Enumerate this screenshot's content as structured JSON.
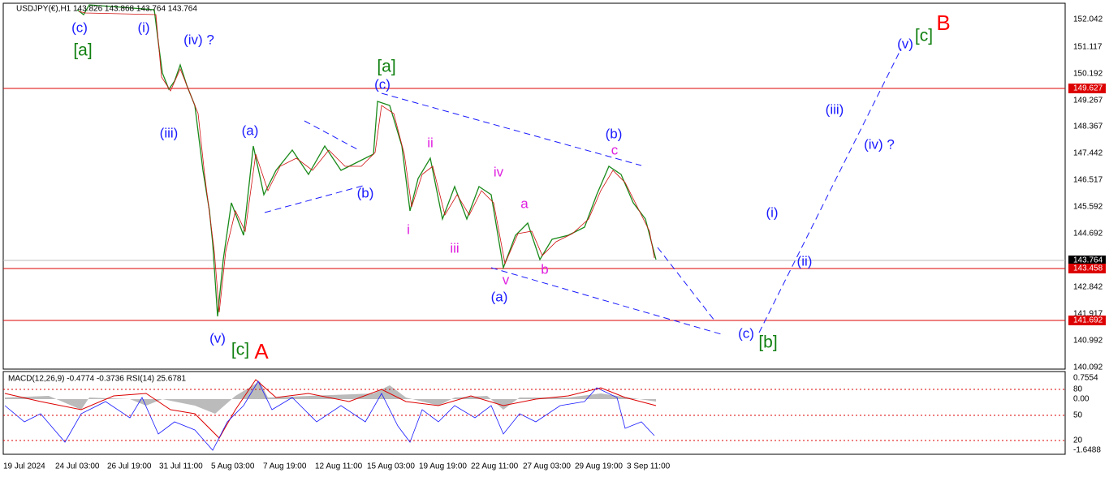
{
  "header": {
    "symbol": "USDJPY(€),H1",
    "ohlc": "143.826 143.868 143.764 143.764"
  },
  "price_axis": [
    "152.042",
    "151.117",
    "150.192",
    "149.627",
    "149.267",
    "148.367",
    "147.442",
    "146.517",
    "145.592",
    "144.692",
    "143.764",
    "143.458",
    "142.842",
    "141.917",
    "141.692",
    "140.992",
    "140.092"
  ],
  "indicator": {
    "header": "MACD(12,26,9) -0.4774 -0.3736 RSI(14) 25.6781",
    "axis": [
      "0.7554",
      "80",
      "0.00",
      "50",
      "20",
      "-1.6488"
    ]
  },
  "time_axis": [
    "19 Jul 2024",
    "24 Jul 03:00",
    "26 Jul 19:00",
    "31 Jul 11:00",
    "5 Aug 03:00",
    "7 Aug 19:00",
    "12 Aug 11:00",
    "15 Aug 03:00",
    "19 Aug 19:00",
    "22 Aug 11:00",
    "27 Aug 03:00",
    "29 Aug 19:00",
    "3 Sep 11:00"
  ],
  "wave_labels": [
    "(c)",
    "[a]",
    "(i)",
    "(iv) ?",
    "(iii)",
    "(a)",
    "(b)",
    "[a]",
    "(c)",
    "ii",
    "i",
    "iii",
    "iv",
    "a",
    "v",
    "(a)",
    "b",
    "(b)",
    "c",
    "(v)",
    "[c]",
    "A",
    "(i)",
    "(ii)",
    "(iii)",
    "(iv) ?",
    "(v)",
    "[c]",
    "B",
    "(c)",
    "[b]"
  ]
}
